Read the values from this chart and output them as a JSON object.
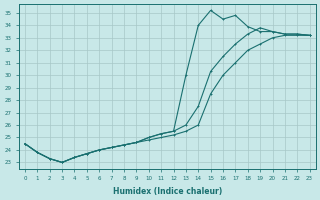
{
  "xlabel": "Humidex (Indice chaleur)",
  "background_color": "#c8e8e8",
  "grid_color": "#a8c8c8",
  "line_color": "#1a7070",
  "xlim": [
    -0.5,
    23.5
  ],
  "ylim": [
    22.5,
    35.7
  ],
  "xticks": [
    0,
    1,
    2,
    3,
    4,
    5,
    6,
    7,
    8,
    9,
    10,
    11,
    12,
    13,
    14,
    15,
    16,
    17,
    18,
    19,
    20,
    21,
    22,
    23
  ],
  "yticks": [
    23,
    24,
    25,
    26,
    27,
    28,
    29,
    30,
    31,
    32,
    33,
    34,
    35
  ],
  "line1_x": [
    0,
    1,
    2,
    3,
    4,
    5,
    6,
    7,
    8,
    9,
    10,
    11,
    12,
    13,
    14,
    15,
    16,
    17,
    18,
    19,
    20,
    21,
    22,
    23
  ],
  "line1_y": [
    24.5,
    23.8,
    23.3,
    23.0,
    23.4,
    23.7,
    24.0,
    24.2,
    24.4,
    24.6,
    24.8,
    25.0,
    25.2,
    25.5,
    26.0,
    28.5,
    30.0,
    31.0,
    32.0,
    32.5,
    33.0,
    33.2,
    33.2,
    33.2
  ],
  "line2_x": [
    0,
    1,
    2,
    3,
    4,
    5,
    6,
    7,
    8,
    9,
    10,
    11,
    12,
    13,
    14,
    15,
    16,
    17,
    18,
    19,
    20,
    21,
    22,
    23
  ],
  "line2_y": [
    24.5,
    23.8,
    23.3,
    23.0,
    23.4,
    23.7,
    24.0,
    24.2,
    24.4,
    24.6,
    25.0,
    25.3,
    25.5,
    26.0,
    27.5,
    30.3,
    31.5,
    32.5,
    33.3,
    33.8,
    33.5,
    33.3,
    33.3,
    33.2
  ],
  "line3_x": [
    0,
    1,
    2,
    3,
    4,
    5,
    6,
    7,
    8,
    9,
    10,
    11,
    12,
    13,
    14,
    15,
    16,
    17,
    18,
    19,
    20,
    21,
    22,
    23
  ],
  "line3_y": [
    24.5,
    23.8,
    23.3,
    23.0,
    23.4,
    23.7,
    24.0,
    24.2,
    24.4,
    24.6,
    25.0,
    25.3,
    25.5,
    30.0,
    34.0,
    35.2,
    34.5,
    34.8,
    33.9,
    33.5,
    33.5,
    33.3,
    33.3,
    33.2
  ]
}
